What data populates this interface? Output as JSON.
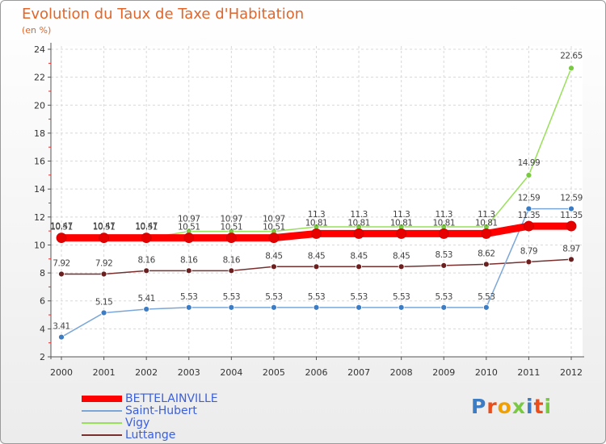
{
  "page": {
    "title": "Evolution du Taux de Taxe d'Habitation",
    "subtitle": "(en %)",
    "brand": "Proxiti"
  },
  "chart_data": {
    "type": "line",
    "x": [
      2000,
      2001,
      2002,
      2003,
      2004,
      2005,
      2006,
      2007,
      2008,
      2009,
      2010,
      2011,
      2012
    ],
    "ylim": [
      2,
      24
    ],
    "yticks": [
      2,
      4,
      6,
      8,
      10,
      12,
      14,
      16,
      18,
      20,
      22,
      24
    ],
    "grid": true,
    "legend_position": "bottom-left",
    "series": [
      {
        "name": "BETTELAINVILLE",
        "color": "#ff0000",
        "point_color": "#e60000",
        "values": [
          10.51,
          10.51,
          10.51,
          10.51,
          10.51,
          10.51,
          10.81,
          10.81,
          10.81,
          10.81,
          10.81,
          11.35,
          11.35
        ],
        "labels": [
          "10.51",
          "10.51",
          "10.51",
          "10.51",
          "10.51",
          "10.51",
          "10.81",
          "10.81",
          "10.81",
          "10.81",
          "10.81",
          "11.35",
          "11.35"
        ]
      },
      {
        "name": "Saint-Hubert",
        "color": "#7ba7d8",
        "point_color": "#3b7cc4",
        "values": [
          3.41,
          5.15,
          5.41,
          5.53,
          5.53,
          5.53,
          5.53,
          5.53,
          5.53,
          5.53,
          5.53,
          12.59,
          12.59
        ],
        "labels": [
          "3.41",
          "5.15",
          "5.41",
          "5.53",
          "5.53",
          "5.53",
          "5.53",
          "5.53",
          "5.53",
          "5.53",
          "5.53",
          "12.59",
          "12.59"
        ]
      },
      {
        "name": "Vigy",
        "color": "#99e05a",
        "point_color": "#7ac943",
        "values": [
          10.47,
          10.47,
          10.47,
          10.97,
          10.97,
          10.97,
          11.3,
          11.3,
          11.3,
          11.3,
          11.3,
          14.99,
          22.65
        ],
        "labels": [
          "10.47",
          "10.47",
          "10.47",
          "10.97",
          "10.97",
          "10.97",
          "11.3",
          "11.3",
          "11.3",
          "11.3",
          "11.3",
          "14.99",
          "22.65"
        ]
      },
      {
        "name": "Luttange",
        "color": "#7a2f2f",
        "point_color": "#6b1f1f",
        "values": [
          7.92,
          7.92,
          8.16,
          8.16,
          8.16,
          8.45,
          8.45,
          8.45,
          8.45,
          8.53,
          8.62,
          8.79,
          8.97
        ],
        "labels": [
          "7.92",
          "7.92",
          "8.16",
          "8.16",
          "8.16",
          "8.45",
          "8.45",
          "8.45",
          "8.45",
          "8.53",
          "8.62",
          "8.79",
          "8.97"
        ]
      }
    ]
  }
}
